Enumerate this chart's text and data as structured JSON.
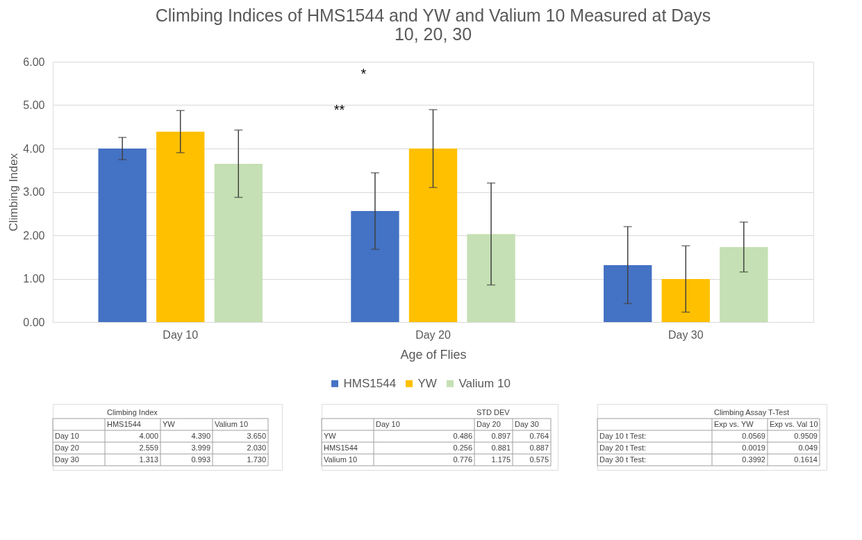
{
  "chart_data": {
    "type": "bar",
    "title": [
      "Climbing Indices of HMS1544 and YW and Valium 10 Measured at Days",
      "10, 20, 30"
    ],
    "xlabel": "Age of Flies",
    "ylabel": "Climbing Index",
    "categories": [
      "Day 10",
      "Day 20",
      "Day 30"
    ],
    "series": [
      {
        "name": "HMS1544",
        "color": "#4472c4",
        "values": [
          4.0,
          2.559,
          1.313
        ],
        "errors": [
          0.256,
          0.881,
          0.887
        ]
      },
      {
        "name": "YW",
        "color": "#ffc000",
        "values": [
          4.39,
          3.999,
          0.993
        ],
        "errors": [
          0.486,
          0.897,
          0.764
        ]
      },
      {
        "name": "Valium 10",
        "color": "#c5e0b4",
        "values": [
          3.65,
          2.03,
          1.73
        ],
        "errors": [
          0.776,
          1.175,
          0.575
        ]
      }
    ],
    "ylim": [
      0,
      6
    ],
    "yticks": [
      {
        "value": 0,
        "label": "0.00"
      },
      {
        "value": 1,
        "label": "1.00"
      },
      {
        "value": 2,
        "label": "2.00"
      },
      {
        "value": 3,
        "label": "3.00"
      },
      {
        "value": 4,
        "label": "4.00"
      },
      {
        "value": 5,
        "label": "5.00"
      },
      {
        "value": 6,
        "label": "6.00"
      }
    ],
    "grid": "y",
    "legend": "bottom",
    "annotations": [
      "*",
      "**",
      "Climbing Index",
      "HMS1544",
      "YW",
      "Valium 10",
      "Day 10",
      "4.000",
      "4.390",
      "3.650",
      "Day 20",
      "2.559",
      "3.999",
      "2.030",
      "Day 30",
      "1.313",
      "0.993",
      "1.730",
      "STD DEV",
      "Day 10",
      "Day 20",
      "Day 30",
      "YW",
      "0.486",
      "0.897",
      "0.764",
      "HMS1544",
      "0.256",
      "0.881",
      "0.887",
      "Valium 10",
      "0.776",
      "1.175",
      "0.575",
      "Climbing Assay T-Test",
      "Exp vs. YW",
      "Exp vs. Val 10",
      "Day 10 t Test:",
      "0.0569",
      "0.9509",
      "Day 20 t Test:",
      "0.0019",
      "0.049",
      "Day 30 t Test:",
      "0.3992",
      "0.1614"
    ]
  }
}
